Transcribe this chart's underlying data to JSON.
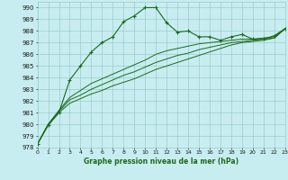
{
  "xlabel": "Graphe pression niveau de la mer (hPa)",
  "ylim": [
    978,
    990.5
  ],
  "xlim": [
    0,
    23
  ],
  "yticks": [
    978,
    979,
    980,
    981,
    982,
    983,
    984,
    985,
    986,
    987,
    988,
    989,
    990
  ],
  "xticks": [
    0,
    1,
    2,
    3,
    4,
    5,
    6,
    7,
    8,
    9,
    10,
    11,
    12,
    13,
    14,
    15,
    16,
    17,
    18,
    19,
    20,
    21,
    22,
    23
  ],
  "bg_color": "#c8edf0",
  "grid_color": "#99cccc",
  "line_color": "#1a6b1a",
  "line1": [
    978.3,
    979.9,
    981.0,
    983.8,
    985.0,
    986.2,
    987.0,
    987.5,
    988.8,
    989.3,
    990.0,
    990.0,
    988.7,
    987.9,
    988.0,
    987.5,
    987.5,
    987.2,
    987.5,
    987.7,
    987.3,
    987.3,
    987.6,
    988.2
  ],
  "line2": [
    978.3,
    980.0,
    981.2,
    982.3,
    982.9,
    983.5,
    983.9,
    984.3,
    984.7,
    985.1,
    985.5,
    986.0,
    986.3,
    986.5,
    986.7,
    986.9,
    987.0,
    987.1,
    987.2,
    987.3,
    987.3,
    987.4,
    987.5,
    988.2
  ],
  "line3": [
    978.3,
    980.0,
    981.1,
    982.1,
    982.5,
    983.0,
    983.4,
    983.8,
    984.2,
    984.5,
    984.9,
    985.3,
    985.6,
    985.9,
    986.1,
    986.4,
    986.6,
    986.8,
    987.0,
    987.1,
    987.2,
    987.3,
    987.4,
    988.2
  ],
  "line4": [
    978.3,
    980.0,
    981.0,
    981.8,
    982.2,
    982.6,
    982.9,
    983.3,
    983.6,
    983.9,
    984.3,
    984.7,
    985.0,
    985.3,
    985.6,
    985.9,
    986.2,
    986.5,
    986.8,
    987.0,
    987.1,
    987.2,
    987.4,
    988.2
  ]
}
